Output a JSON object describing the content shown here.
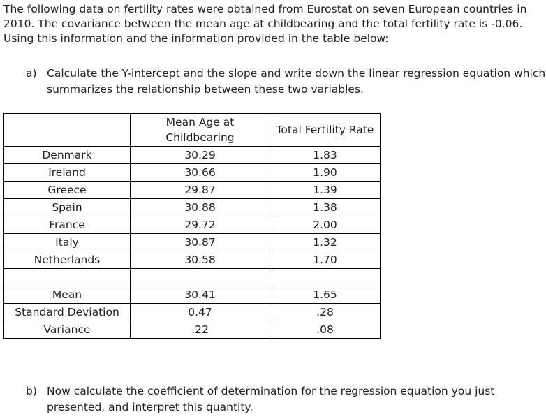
{
  "intro": "The following data on fertility rates were obtained from Eurostat on seven European countries in 2010. The covariance between the mean age at childbearing and the total fertility rate is -0.06. Using this information and the information provided in the table below:",
  "question_a": {
    "label": "a)",
    "text": "Calculate the Y-intercept and the slope and write down the linear regression equation which summarizes the relationship between these two variables."
  },
  "table": {
    "headers": [
      "",
      "Mean Age at Childbearing",
      "Total Fertility Rate"
    ],
    "rows": [
      {
        "label": "Denmark",
        "age": "30.29",
        "tfr": "1.83"
      },
      {
        "label": "Ireland",
        "age": "30.66",
        "tfr": "1.90"
      },
      {
        "label": "Greece",
        "age": "29.87",
        "tfr": "1.39"
      },
      {
        "label": "Spain",
        "age": "30.88",
        "tfr": "1.38"
      },
      {
        "label": "France",
        "age": "29.72",
        "tfr": "2.00"
      },
      {
        "label": "Italy",
        "age": "30.87",
        "tfr": "1.32"
      },
      {
        "label": "Netherlands",
        "age": "30.58",
        "tfr": "1.70"
      }
    ],
    "stats": [
      {
        "label": "Mean",
        "age": "30.41",
        "tfr": "1.65"
      },
      {
        "label": "Standard Deviation",
        "age": "0.47",
        "tfr": ".28"
      },
      {
        "label": "Variance",
        "age": ".22",
        "tfr": ".08"
      }
    ]
  },
  "question_b": {
    "label": "b)",
    "text": "Now calculate the coefficient of determination for the regression equation you just presented, and interpret this quantity."
  }
}
